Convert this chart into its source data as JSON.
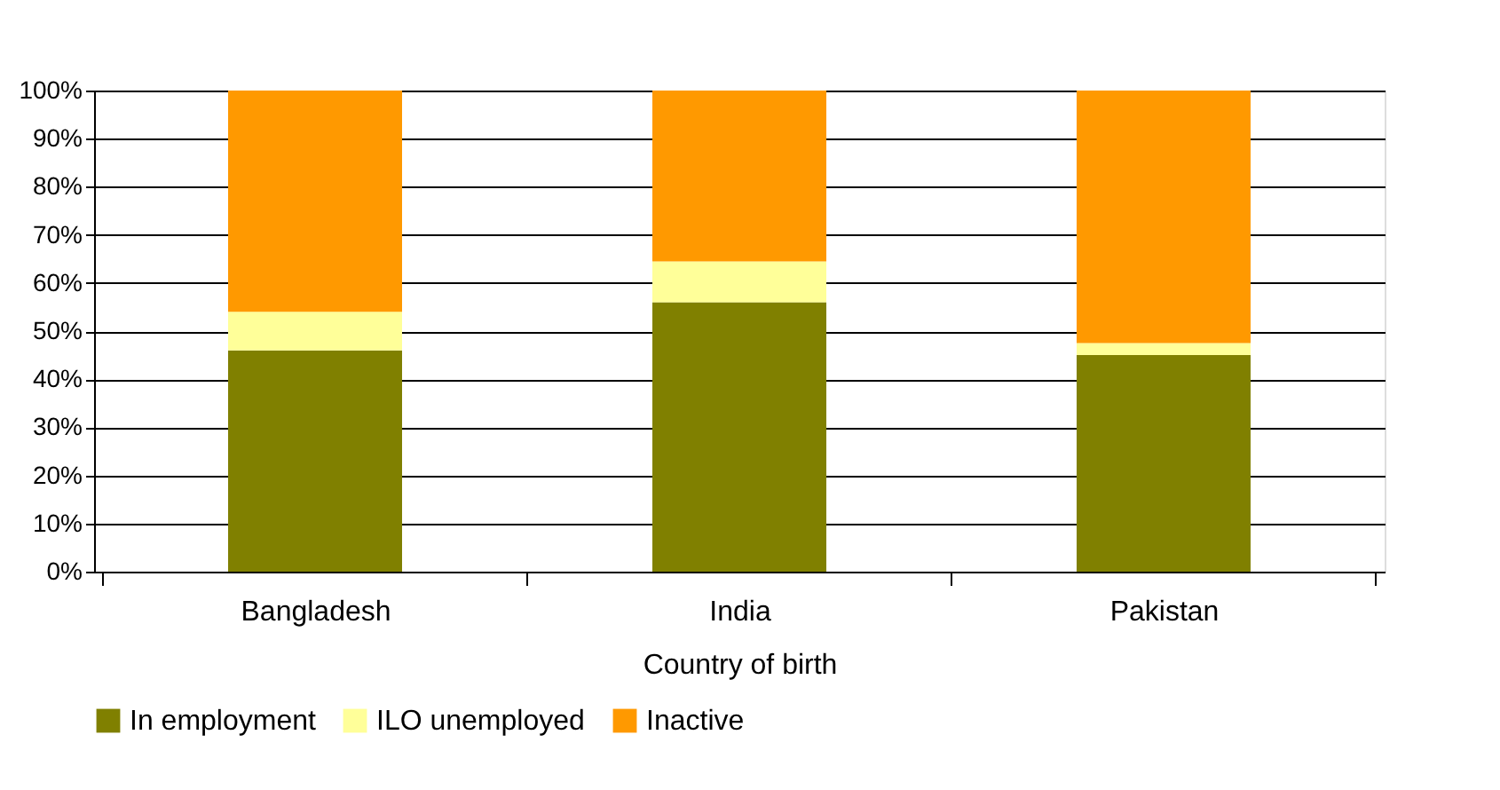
{
  "chart_data": {
    "type": "bar",
    "stacked": true,
    "xlabel": "Country of birth",
    "categories": [
      "Bangladesh",
      "India",
      "Pakistan"
    ],
    "series": [
      {
        "name": "In employment",
        "color": "#808000",
        "values": [
          46,
          56,
          45
        ]
      },
      {
        "name": "ILO unemployed",
        "color": "#ffff99",
        "values": [
          8,
          8.5,
          2.5
        ]
      },
      {
        "name": "Inactive",
        "color": "#ff9900",
        "values": [
          46,
          35.5,
          52.5
        ]
      }
    ],
    "ylim": [
      0,
      100
    ],
    "yticks": [
      {
        "value": 0,
        "label": "0%"
      },
      {
        "value": 10,
        "label": "10%"
      },
      {
        "value": 20,
        "label": "20%"
      },
      {
        "value": 30,
        "label": "30%"
      },
      {
        "value": 40,
        "label": "40%"
      },
      {
        "value": 50,
        "label": "50%"
      },
      {
        "value": 60,
        "label": "60%"
      },
      {
        "value": 70,
        "label": "70%"
      },
      {
        "value": 80,
        "label": "80%"
      },
      {
        "value": 90,
        "label": "90%"
      },
      {
        "value": 100,
        "label": "100%"
      }
    ],
    "grid": "y",
    "legend": "bottom"
  }
}
